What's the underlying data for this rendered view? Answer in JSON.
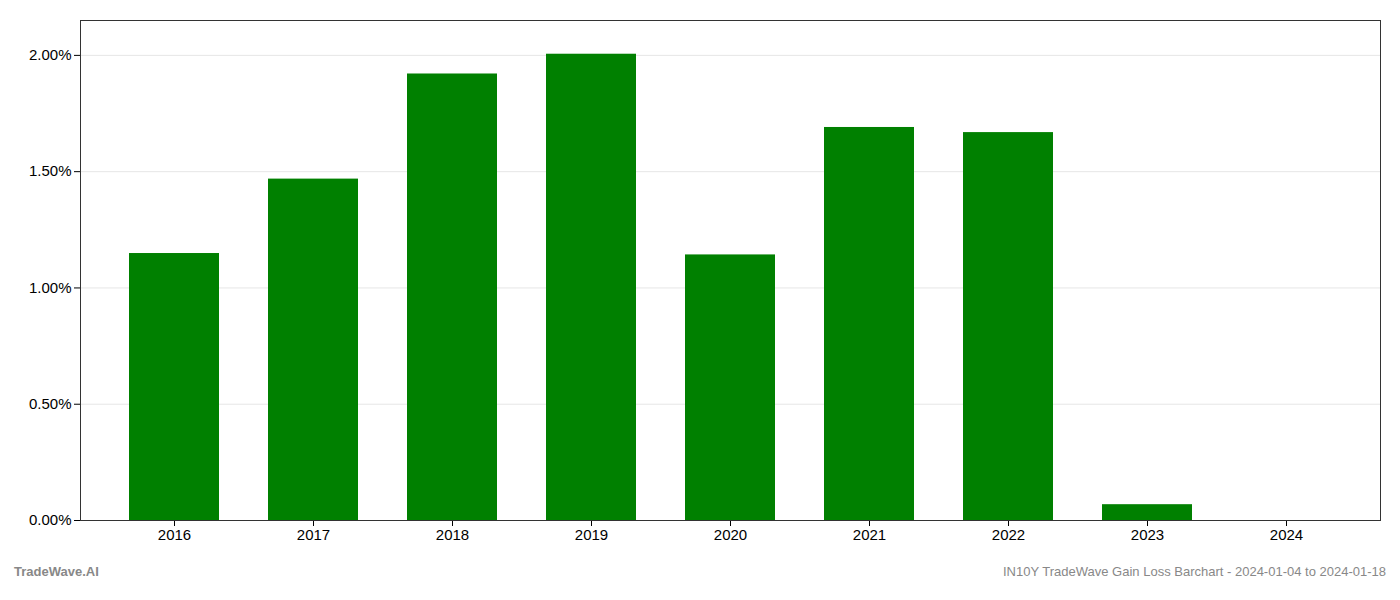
{
  "chart_data": {
    "type": "bar",
    "categories": [
      "2016",
      "2017",
      "2018",
      "2019",
      "2020",
      "2021",
      "2022",
      "2023",
      "2024"
    ],
    "values": [
      0.01148,
      0.01468,
      0.0192,
      0.02005,
      0.01142,
      0.0169,
      0.01668,
      0.00068,
      0.0
    ],
    "color": "#008000",
    "ylim": [
      0,
      0.0215
    ],
    "yticks": [
      {
        "value": 0,
        "label": "0.00%"
      },
      {
        "value": 0.005,
        "label": "0.50%"
      },
      {
        "value": 0.01,
        "label": "1.00%"
      },
      {
        "value": 0.015,
        "label": "1.50%"
      },
      {
        "value": 0.02,
        "label": "2.00%"
      }
    ],
    "grid": true,
    "annotations": [
      "TradeWave.AI",
      "IN10Y TradeWave Gain Loss Barchart - 2024-01-04 to 2024-01-18"
    ]
  }
}
